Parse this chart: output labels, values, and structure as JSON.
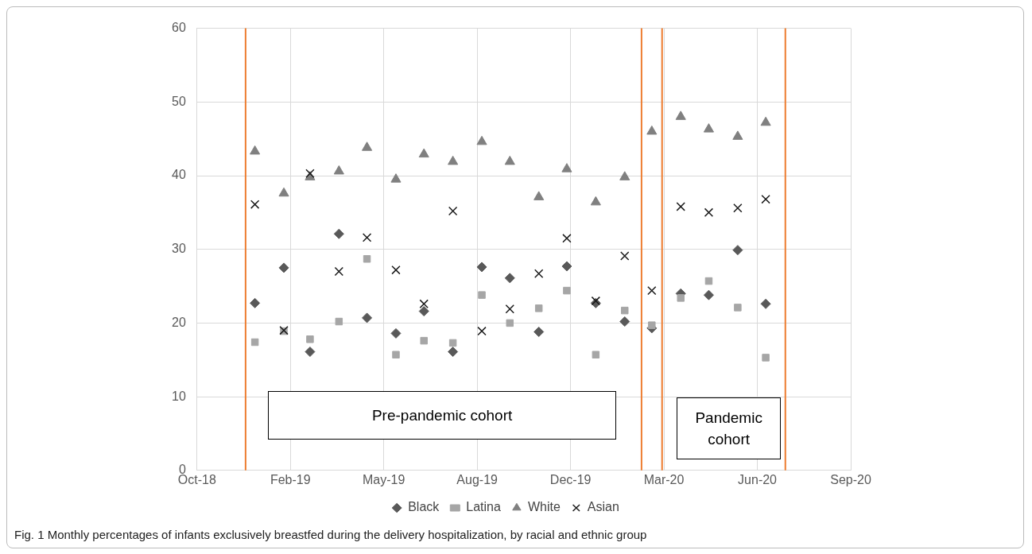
{
  "chart_data": {
    "type": "scatter",
    "x": [
      "2019-01",
      "2019-02",
      "2019-03",
      "2019-04",
      "2019-05",
      "2019-06",
      "2019-07",
      "2019-08",
      "2019-09",
      "2019-10",
      "2019-11",
      "2019-12",
      "2020-01",
      "2020-02",
      "2020-03",
      "2020-04",
      "2020-05",
      "2020-06",
      "2020-07"
    ],
    "series": [
      {
        "name": "Black",
        "color": "#595959",
        "marker": "diamond",
        "values": [
          22.7,
          27.5,
          16.1,
          32.1,
          20.7,
          18.6,
          21.6,
          16.1,
          27.6,
          26.1,
          18.8,
          27.7,
          22.7,
          20.2,
          19.3,
          24.0,
          23.8,
          29.9,
          22.6
        ]
      },
      {
        "name": "Latina",
        "color": "#a6a6a6",
        "marker": "square",
        "values": [
          17.4,
          18.9,
          17.8,
          20.2,
          28.7,
          15.7,
          17.6,
          17.3,
          23.8,
          20.0,
          22.0,
          24.4,
          15.7,
          21.7,
          19.7,
          23.4,
          25.7,
          22.1,
          15.3
        ]
      },
      {
        "name": "White",
        "color": "#808080",
        "marker": "triangle",
        "values": [
          43.3,
          37.6,
          39.8,
          40.6,
          43.8,
          39.5,
          42.9,
          41.9,
          44.6,
          41.9,
          37.1,
          40.9,
          36.4,
          39.8,
          46.0,
          48.0,
          46.3,
          45.3,
          47.2
        ]
      },
      {
        "name": "Asian",
        "color": "#1a1a1a",
        "marker": "cross",
        "values": [
          36.1,
          19.0,
          40.3,
          27.0,
          31.6,
          27.2,
          22.6,
          35.2,
          18.9,
          21.9,
          26.7,
          31.5,
          23.0,
          29.1,
          24.4,
          35.8,
          35.0,
          35.6,
          36.8
        ]
      }
    ],
    "xlim": [
      "2018-10-31",
      "2020-09-30"
    ],
    "xticks": [
      {
        "value": "2018-10-31",
        "label": "Oct-18"
      },
      {
        "value": "2019-02-08",
        "label": "Feb-19"
      },
      {
        "value": "2019-05-19",
        "label": "May-19"
      },
      {
        "value": "2019-08-27",
        "label": "Aug-19"
      },
      {
        "value": "2019-12-05",
        "label": "Dec-19"
      },
      {
        "value": "2020-03-14",
        "label": "Mar-20"
      },
      {
        "value": "2020-06-22",
        "label": "Jun-20"
      },
      {
        "value": "2020-09-30",
        "label": "Sep-20"
      }
    ],
    "ylim": [
      0,
      60
    ],
    "yticks": [
      0,
      10,
      20,
      30,
      40,
      50,
      60
    ],
    "grid": true,
    "legend": "bottom",
    "ref_lines": [
      {
        "axis": "x",
        "value": "2018-12-22",
        "color": "#ed7d31"
      },
      {
        "axis": "x",
        "value": "2020-02-19",
        "color": "#ed7d31"
      },
      {
        "axis": "x",
        "value": "2020-03-12",
        "color": "#ed7d31"
      },
      {
        "axis": "x",
        "value": "2020-07-22",
        "color": "#ed7d31"
      }
    ],
    "annotations": [
      "Pre-pandemic cohort",
      "Pandemic\ncohort",
      "Fig. 1  Monthly percentages of infants exclusively breastfed during the delivery hospitalization, by racial and ethnic group"
    ]
  }
}
